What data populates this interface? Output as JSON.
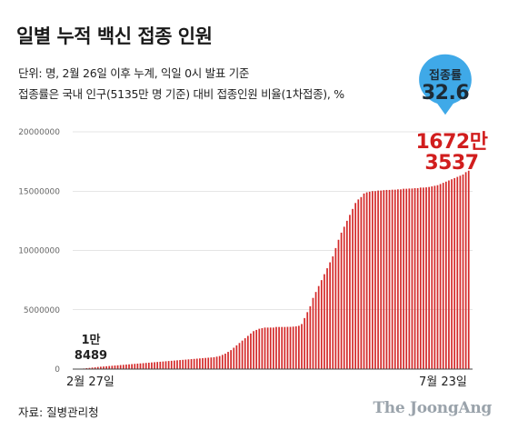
{
  "header": {
    "title": "일별 누적 백신 접종 인원",
    "subtitle_1": "단위: 명, 2월 26일 이후 누계, 익일 0시 발표 기준",
    "subtitle_2": "접종률은 국내 인구(5135만 명 기준) 대비 접종인원 비율(1차접종), %"
  },
  "badge": {
    "label": "접종률",
    "value": "32.6",
    "color": "#3fa9e8"
  },
  "annotations": {
    "last_line1": "1672만",
    "last_line2": "3537",
    "first_line1": "1만",
    "first_line2": "8489"
  },
  "footer": {
    "source": "자료: 질병관리청",
    "brand": "The JoongAng"
  },
  "colors": {
    "bar": "#d42a2a",
    "axis": "#444444",
    "grid": "#cccccc",
    "annotation": "#d11e1e"
  },
  "chart_data": {
    "type": "bar",
    "title": "일별 누적 백신 접종 인원",
    "x_tick_labels": [
      "2월 27일",
      "7월 23일"
    ],
    "y_ticks": [
      "0",
      "5000000",
      "10000000",
      "15000000",
      "20000000"
    ],
    "ylim": [
      0,
      20000000
    ],
    "grid": true,
    "first_value": 18489,
    "last_value": 16723537,
    "series": [
      {
        "values": [
          18489,
          20000,
          40000,
          50000,
          80000,
          100000,
          130000,
          150000,
          180000,
          200000,
          220000,
          240000,
          260000,
          280000,
          300000,
          320000,
          340000,
          360000,
          380000,
          400000,
          420000,
          440000,
          460000,
          480000,
          500000,
          520000,
          540000,
          560000,
          580000,
          600000,
          620000,
          640000,
          660000,
          680000,
          700000,
          720000,
          740000,
          760000,
          780000,
          800000,
          820000,
          840000,
          860000,
          880000,
          900000,
          920000,
          940000,
          960000,
          980000,
          1000000,
          1050000,
          1100000,
          1200000,
          1300000,
          1450000,
          1600000,
          1800000,
          2000000,
          2200000,
          2400000,
          2600000,
          2800000,
          3000000,
          3200000,
          3300000,
          3400000,
          3450000,
          3500000,
          3500000,
          3500000,
          3500000,
          3550000,
          3550000,
          3550000,
          3550000,
          3560000,
          3560000,
          3580000,
          3600000,
          3650000,
          3800000,
          4300000,
          4800000,
          5300000,
          6000000,
          6500000,
          7000000,
          7500000,
          8000000,
          8500000,
          9000000,
          9500000,
          10200000,
          10900000,
          11500000,
          12000000,
          12500000,
          13000000,
          13500000,
          14000000,
          14300000,
          14500000,
          14800000,
          14900000,
          14950000,
          15000000,
          15000000,
          15050000,
          15050000,
          15080000,
          15100000,
          15100000,
          15120000,
          15120000,
          15150000,
          15150000,
          15200000,
          15200000,
          15220000,
          15220000,
          15250000,
          15250000,
          15300000,
          15300000,
          15320000,
          15350000,
          15400000,
          15450000,
          15500000,
          15600000,
          15700000,
          15800000,
          15900000,
          16000000,
          16100000,
          16200000,
          16300000,
          16400000,
          16600000,
          16723537
        ]
      }
    ]
  }
}
